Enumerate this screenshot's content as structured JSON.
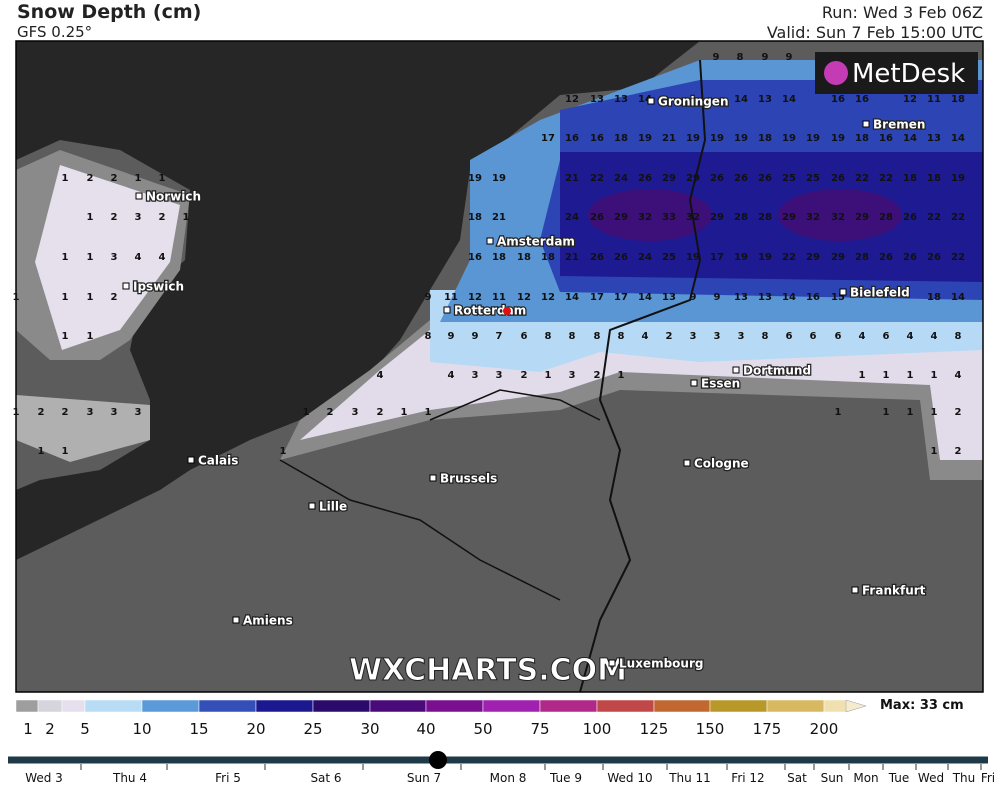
{
  "header": {
    "title": "Snow Depth (cm)",
    "model": "GFS 0.25°",
    "run": "Run: Wed 3 Feb 06Z",
    "valid": "Valid: Sun 7 Feb 15:00 UTC"
  },
  "logo": "MetDesk",
  "watermark": "WXCHARTS.COM",
  "cities": [
    "Norwich",
    "Ipswich",
    "Groningen",
    "Bremen",
    "Amsterdam",
    "Rotterdam",
    "Bielefeld",
    "Dortmund",
    "Essen",
    "Calais",
    "Cologne",
    "Brussels",
    "Lille",
    "Frankfurt",
    "Amiens",
    "Luxembourg"
  ],
  "grid_rows": [
    [
      9,
      8,
      9,
      9
    ],
    [
      12,
      13,
      13,
      14,
      14,
      13,
      14,
      16,
      16,
      12,
      11,
      18
    ],
    [
      17,
      16,
      16,
      18,
      19,
      21,
      19,
      19,
      19,
      18,
      19,
      19,
      19,
      18,
      16,
      14,
      13,
      14
    ],
    [
      19,
      19,
      21,
      22,
      24,
      26,
      29,
      29,
      26,
      26,
      26,
      25,
      25,
      26,
      22,
      22,
      18,
      18,
      19
    ],
    [
      18,
      21,
      24,
      26,
      29,
      32,
      33,
      32,
      29,
      28,
      28,
      29,
      32,
      32,
      29,
      28,
      26,
      22,
      22
    ],
    [
      16,
      18,
      18,
      18,
      21,
      26,
      26,
      24,
      25,
      19,
      17,
      19,
      19,
      22,
      29,
      29,
      28,
      26,
      26,
      26,
      22
    ],
    [
      9,
      11,
      12,
      11,
      12,
      12,
      14,
      17,
      17,
      14,
      13,
      9,
      9,
      13,
      13,
      14,
      16,
      15,
      18,
      14
    ],
    [
      8,
      9,
      9,
      7,
      6,
      8,
      8,
      8,
      8,
      4,
      2,
      3,
      3,
      3,
      8,
      6,
      6,
      6,
      4,
      6,
      4,
      4,
      8
    ],
    [
      4,
      4,
      3,
      3,
      2,
      1,
      3,
      2,
      1,
      1,
      1,
      1,
      1,
      4
    ],
    [
      1,
      2,
      3,
      2,
      1,
      1,
      1,
      1,
      1,
      1,
      2
    ],
    [
      1,
      1,
      2
    ],
    [
      1,
      2,
      2,
      1,
      1
    ],
    [
      1,
      2,
      3,
      2,
      1
    ],
    [
      1,
      1,
      3,
      4,
      4
    ],
    [
      1,
      1,
      1,
      2
    ],
    [
      1,
      1
    ],
    [
      1,
      2,
      2,
      3,
      3,
      3
    ],
    [
      1,
      1
    ]
  ],
  "legend": {
    "levels": [
      1,
      2,
      5,
      10,
      15,
      20,
      25,
      30,
      40,
      50,
      75,
      100,
      125,
      150,
      175,
      200
    ],
    "max": "Max: 33 cm"
  },
  "timeline": {
    "days": [
      "Wed 3",
      "Thu 4",
      "Fri 5",
      "Sat 6",
      "Sun 7",
      "Mon 8",
      "Tue 9",
      "Wed 10",
      "Thu 11",
      "Fri 12",
      "Sat",
      "Sun",
      "Mon",
      "Tue",
      "Wed",
      "Thu",
      "Fri"
    ]
  }
}
